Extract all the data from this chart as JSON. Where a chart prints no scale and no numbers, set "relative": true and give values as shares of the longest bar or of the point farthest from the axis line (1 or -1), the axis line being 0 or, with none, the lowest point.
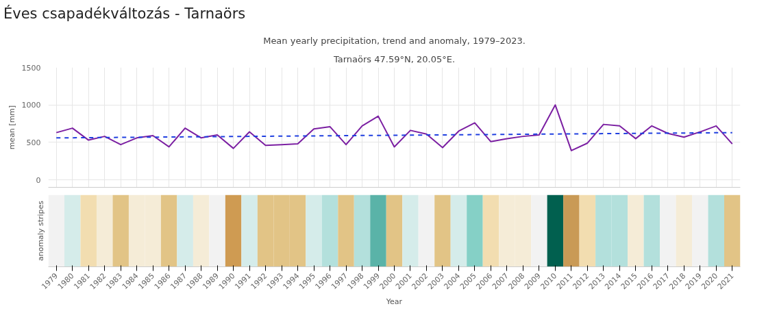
{
  "chart_data": [
    {
      "type": "line",
      "title": "Mean yearly precipitation, trend and anomaly, 1979–2023.",
      "subtitle": "Tarnaörs 47.59°N, 20.05°E.",
      "annotations": [
        "Éves csapadékváltozás - Tarnaörs"
      ],
      "ylabel": "mean [mm]",
      "categories": [
        "1979",
        "1980",
        "1981",
        "1982",
        "1983",
        "1984",
        "1985",
        "1986",
        "1987",
        "1988",
        "1989",
        "1990",
        "1991",
        "1992",
        "1993",
        "1994",
        "1995",
        "1996",
        "1997",
        "1998",
        "1999",
        "2000",
        "2001",
        "2002",
        "2003",
        "2004",
        "2005",
        "2006",
        "2007",
        "2008",
        "2009",
        "2010",
        "2011",
        "2012",
        "2013",
        "2014",
        "2015",
        "2016",
        "2017",
        "2018",
        "2019",
        "2020",
        "2021"
      ],
      "series": [
        {
          "color": "#7b1fa2",
          "values": [
            630,
            690,
            530,
            580,
            470,
            560,
            590,
            440,
            690,
            560,
            600,
            420,
            640,
            460,
            470,
            480,
            680,
            710,
            470,
            720,
            850,
            440,
            660,
            610,
            430,
            650,
            760,
            510,
            550,
            580,
            600,
            1000,
            390,
            490,
            740,
            720,
            550,
            720,
            620,
            570,
            640,
            720,
            480
          ]
        },
        {
          "color": "#1f3fe0",
          "line_style": "dashed",
          "values": [
            560,
            null,
            null,
            null,
            null,
            null,
            null,
            null,
            null,
            null,
            null,
            null,
            null,
            null,
            null,
            null,
            null,
            null,
            null,
            null,
            null,
            null,
            null,
            null,
            null,
            null,
            null,
            null,
            null,
            null,
            null,
            null,
            null,
            null,
            null,
            null,
            null,
            null,
            null,
            null,
            null,
            null,
            630
          ]
        }
      ],
      "ylim": [
        -100,
        1500
      ],
      "yticks": [
        0,
        500,
        1000,
        1500
      ],
      "grid": true,
      "tick_labels": "y",
      "marker": "none"
    },
    {
      "type": "bar",
      "relative": true,
      "xlabel": "Year",
      "ylabel": "anomaly stripes",
      "categories": [
        "1979",
        "1980",
        "1981",
        "1982",
        "1983",
        "1984",
        "1985",
        "1986",
        "1987",
        "1988",
        "1989",
        "1990",
        "1991",
        "1992",
        "1993",
        "1994",
        "1995",
        "1996",
        "1997",
        "1998",
        "1999",
        "2000",
        "2001",
        "2002",
        "2003",
        "2004",
        "2005",
        "2006",
        "2007",
        "2008",
        "2009",
        "2010",
        "2011",
        "2012",
        "2013",
        "2014",
        "2015",
        "2016",
        "2017",
        "2018",
        "2019",
        "2020",
        "2021"
      ],
      "values": [
        1,
        1,
        1,
        1,
        1,
        1,
        1,
        1,
        1,
        1,
        1,
        1,
        1,
        1,
        1,
        1,
        1,
        1,
        1,
        1,
        1,
        1,
        1,
        1,
        1,
        1,
        1,
        1,
        1,
        1,
        1,
        1,
        1,
        1,
        1,
        1,
        1,
        1,
        1,
        1,
        1,
        1,
        1
      ],
      "colors": [
        "#f2f2f2",
        "#d5ecea",
        "#f2ddb0",
        "#f5ecd7",
        "#e2c486",
        "#f5ecd7",
        "#f5ecd7",
        "#e2c486",
        "#d5ecea",
        "#f5ecd7",
        "#f2f2f2",
        "#cf9b52",
        "#d5ecea",
        "#e2c486",
        "#e2c486",
        "#e2c486",
        "#d5ecea",
        "#b3e0dc",
        "#e2c486",
        "#b3e0dc",
        "#5ab3a8",
        "#e2c486",
        "#d5ecea",
        "#f2f2f2",
        "#e2c486",
        "#d5ecea",
        "#85d0c6",
        "#f2ddb0",
        "#f5ecd7",
        "#f5ecd7",
        "#f2f2f2",
        "#01604f",
        "#c99a56",
        "#f2ddb0",
        "#b3e0dc",
        "#b3e0dc",
        "#f5ecd7",
        "#b3e0dc",
        "#f2f2f2",
        "#f5ecd7",
        "#f2f2f2",
        "#b3e0dc",
        "#e2c486"
      ],
      "tick_labels": "x",
      "grid": false
    }
  ]
}
